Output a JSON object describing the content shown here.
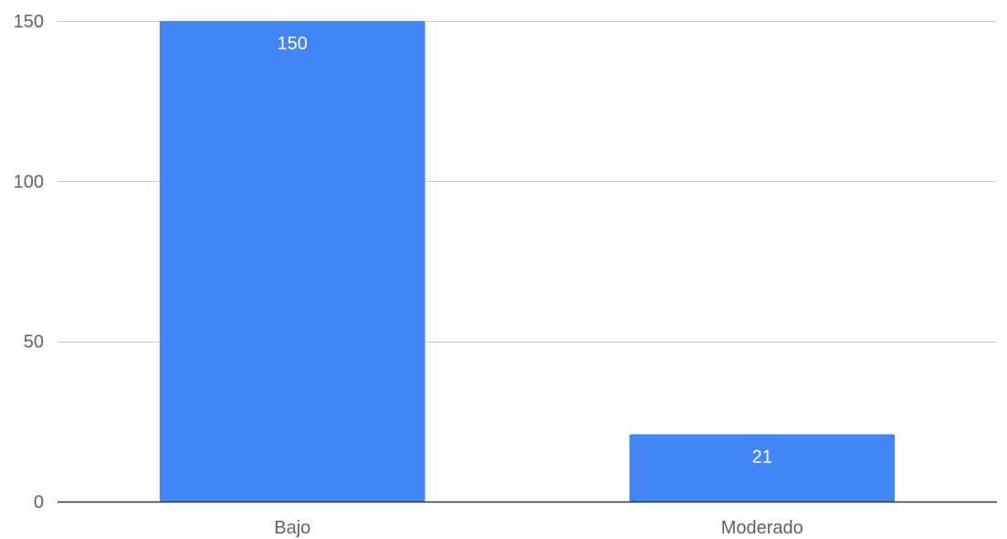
{
  "chart_data": {
    "type": "bar",
    "title": "",
    "xlabel": "",
    "ylabel": "",
    "categories": [
      "Bajo",
      "Moderado"
    ],
    "series": [
      {
        "values": [
          150,
          21
        ]
      }
    ],
    "data_labels": [
      "150",
      "21"
    ],
    "ylim": [
      0,
      150
    ],
    "yticks": [
      0,
      50,
      100,
      150
    ],
    "ytick_labels": [
      "0",
      "50",
      "100",
      "150"
    ],
    "grid": true,
    "legend": "none",
    "colors": {
      "bar": "#4285f4",
      "gridline": "#cccccc",
      "baseline": "#333333",
      "tick_text": "#5f6368",
      "data_label_text": "#ffffff"
    }
  }
}
